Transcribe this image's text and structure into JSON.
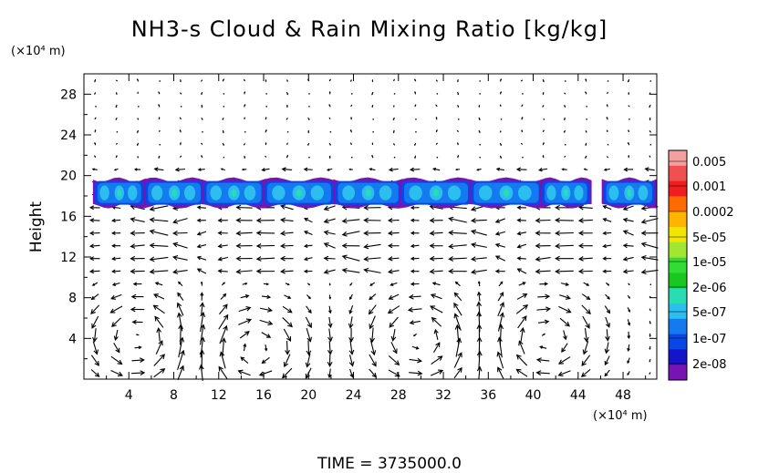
{
  "chart_data": {
    "type": "heatmap",
    "title": "NH3-s Cloud & Rain Mixing Ratio [kg/kg]",
    "ylabel": "Height",
    "y_unit_label": "(×10⁴ m)",
    "x_unit_label": "(×10⁴ m)",
    "footer": "TIME = 3735000.0",
    "xlim": [
      0,
      51
    ],
    "ylim": [
      0,
      30
    ],
    "x_ticks": [
      "4",
      "8",
      "12",
      "16",
      "20",
      "24",
      "28",
      "32",
      "36",
      "40",
      "44",
      "48"
    ],
    "x_tick_values": [
      4,
      8,
      12,
      16,
      20,
      24,
      28,
      32,
      36,
      40,
      44,
      48
    ],
    "y_ticks": [
      "4",
      "8",
      "12",
      "16",
      "20",
      "24",
      "28"
    ],
    "y_tick_values": [
      4,
      8,
      12,
      16,
      20,
      24,
      28
    ],
    "colorbar": {
      "labels": [
        "0.005",
        "0.001",
        "0.0002",
        "5e-05",
        "1e-05",
        "2e-06",
        "5e-07",
        "1e-07",
        "2e-08"
      ],
      "colors": [
        "#f4a0a0",
        "#f05050",
        "#f01e1e",
        "#ff6a00",
        "#ffb400",
        "#f0e600",
        "#a0e632",
        "#32dc32",
        "#19c81e",
        "#28dcb4",
        "#2dbef0",
        "#147af0",
        "#0a46e6",
        "#1414c8",
        "#7814b4"
      ]
    },
    "cloud_layer": {
      "y_bottom": 17.0,
      "y_top": 19.6,
      "segments": [
        [
          0.8,
          5.5
        ],
        [
          5.3,
          10.8
        ],
        [
          10.5,
          16.2
        ],
        [
          15.9,
          22.4
        ],
        [
          22.2,
          28.4
        ],
        [
          28.1,
          34.6
        ],
        [
          34.3,
          40.9
        ],
        [
          40.6,
          45.2
        ],
        [
          46.1,
          51.0
        ]
      ]
    },
    "wind_field": {
      "description_cells": [
        {
          "center": [
            5,
            4
          ],
          "sense": "ccw"
        },
        {
          "center": [
            15,
            3
          ],
          "sense": "cw"
        },
        {
          "center": [
            30,
            4
          ],
          "sense": "ccw"
        },
        {
          "center": [
            41,
            4
          ],
          "sense": "cw"
        }
      ]
    }
  }
}
